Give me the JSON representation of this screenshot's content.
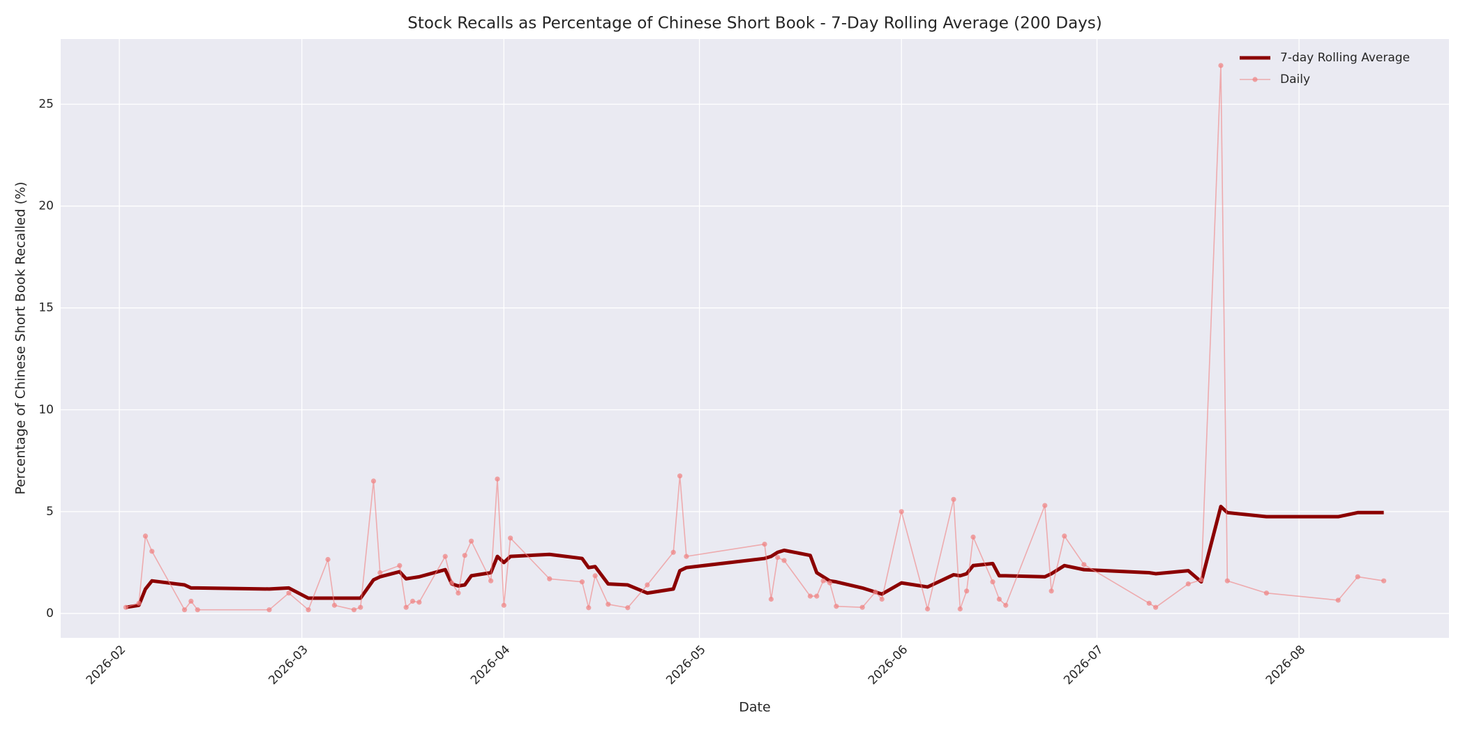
{
  "chart_data": {
    "type": "line",
    "title": "Stock Recalls as Percentage of Chinese Short Book - 7-Day Rolling Average (200 Days)",
    "xlabel": "Date",
    "ylabel": "Percentage of Chinese Short Book Recalled (%)",
    "x": [
      "2026-02-02",
      "2026-02-04",
      "2026-02-05",
      "2026-02-06",
      "2026-02-11",
      "2026-02-12",
      "2026-02-13",
      "2026-02-24",
      "2026-02-27",
      "2026-03-02",
      "2026-03-05",
      "2026-03-06",
      "2026-03-09",
      "2026-03-10",
      "2026-03-12",
      "2026-03-13",
      "2026-03-16",
      "2026-03-17",
      "2026-03-18",
      "2026-03-19",
      "2026-03-23",
      "2026-03-24",
      "2026-03-25",
      "2026-03-26",
      "2026-03-27",
      "2026-03-30",
      "2026-03-31",
      "2026-04-01",
      "2026-04-02",
      "2026-04-08",
      "2026-04-13",
      "2026-04-14",
      "2026-04-15",
      "2026-04-17",
      "2026-04-20",
      "2026-04-23",
      "2026-04-27",
      "2026-04-28",
      "2026-04-29",
      "2026-05-11",
      "2026-05-12",
      "2026-05-13",
      "2026-05-14",
      "2026-05-18",
      "2026-05-19",
      "2026-05-20",
      "2026-05-21",
      "2026-05-22",
      "2026-05-26",
      "2026-05-28",
      "2026-05-29",
      "2026-06-01",
      "2026-06-05",
      "2026-06-09",
      "2026-06-10",
      "2026-06-11",
      "2026-06-12",
      "2026-06-15",
      "2026-06-16",
      "2026-06-17",
      "2026-06-23",
      "2026-06-24",
      "2026-06-26",
      "2026-06-29",
      "2026-07-09",
      "2026-07-10",
      "2026-07-15",
      "2026-07-17",
      "2026-07-20",
      "2026-07-21",
      "2026-07-27",
      "2026-08-07",
      "2026-08-10",
      "2026-08-14"
    ],
    "series": [
      {
        "name": "7-day Rolling Average",
        "color": "#8b0000",
        "values": [
          0.3,
          0.4,
          1.2,
          1.6,
          1.4,
          1.25,
          1.25,
          1.2,
          1.25,
          0.75,
          0.75,
          0.75,
          0.75,
          0.75,
          1.65,
          1.8,
          2.05,
          1.7,
          1.75,
          1.8,
          2.15,
          1.45,
          1.35,
          1.4,
          1.85,
          2.0,
          2.8,
          2.5,
          2.8,
          2.9,
          2.7,
          2.25,
          2.3,
          1.45,
          1.4,
          1.0,
          1.2,
          2.1,
          2.25,
          2.7,
          2.8,
          3.0,
          3.1,
          2.85,
          2.0,
          1.8,
          1.6,
          1.55,
          1.25,
          1.05,
          0.95,
          1.5,
          1.3,
          1.9,
          1.85,
          1.95,
          2.35,
          2.45,
          1.85,
          1.85,
          1.8,
          1.95,
          2.35,
          2.15,
          2.0,
          1.95,
          2.1,
          1.55,
          5.25,
          4.95,
          4.75,
          4.75,
          4.95,
          4.95
        ]
      },
      {
        "name": "Daily",
        "color": "#f08080",
        "values": [
          0.3,
          0.5,
          3.8,
          3.05,
          0.18,
          0.6,
          0.18,
          0.18,
          1.0,
          0.18,
          2.65,
          0.4,
          0.18,
          0.3,
          6.5,
          2.0,
          2.35,
          0.3,
          0.6,
          0.55,
          2.8,
          1.5,
          1.0,
          2.85,
          3.55,
          1.6,
          6.6,
          0.4,
          3.7,
          1.7,
          1.55,
          0.28,
          1.85,
          0.45,
          0.28,
          1.4,
          3.0,
          6.75,
          2.8,
          3.4,
          0.7,
          2.75,
          2.6,
          0.85,
          0.85,
          1.6,
          1.5,
          0.35,
          0.3,
          1.05,
          0.7,
          5.0,
          0.22,
          5.6,
          0.22,
          1.1,
          3.75,
          1.55,
          0.7,
          0.4,
          5.3,
          1.1,
          3.8,
          2.4,
          0.5,
          0.3,
          1.45,
          1.65,
          26.9,
          1.6,
          1.0,
          0.65,
          1.8,
          1.6
        ]
      }
    ],
    "xlim": [
      "2026-01-23",
      "2026-08-24"
    ],
    "xticks": [
      {
        "value": "2026-02-01",
        "label": "2026-02"
      },
      {
        "value": "2026-03-01",
        "label": "2026-03"
      },
      {
        "value": "2026-04-01",
        "label": "2026-04"
      },
      {
        "value": "2026-05-01",
        "label": "2026-05"
      },
      {
        "value": "2026-06-01",
        "label": "2026-06"
      },
      {
        "value": "2026-07-01",
        "label": "2026-07"
      },
      {
        "value": "2026-08-01",
        "label": "2026-08"
      }
    ],
    "ylim": [
      -1.2,
      28.2
    ],
    "yticks": [
      0,
      5,
      10,
      15,
      20,
      25
    ],
    "grid": true,
    "legend": "upper right"
  }
}
